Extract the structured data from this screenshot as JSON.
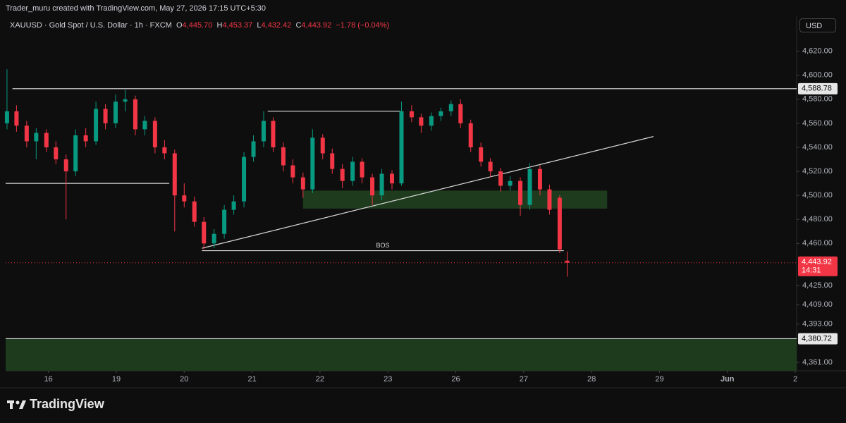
{
  "header": {
    "credit": "Trader_muru created with TradingView.com, May 27, 2026 17:15 UTC+5:30",
    "symbol": "XAUUSD · Gold Spot / U.S. Dollar · 1h · FXCM",
    "o_label": "O",
    "o_value": "4,445.70",
    "h_label": "H",
    "h_value": "4,453.37",
    "l_label": "L",
    "l_value": "4,432.42",
    "c_label": "C",
    "c_value": "4,443.92",
    "change": "−1.78 (−0.04%)",
    "currency": "USD"
  },
  "footer": {
    "logo": "TradingView"
  },
  "chart_data": {
    "type": "candlestick",
    "up_color": "#089981",
    "down_color": "#f23645",
    "x": [
      -0.61,
      -0.47,
      -0.32,
      -0.18,
      -0.03,
      0.11,
      0.26,
      0.4,
      0.55,
      0.7,
      0.84,
      0.99,
      1.13,
      1.28,
      1.42,
      1.57,
      1.71,
      1.86,
      2.0,
      2.15,
      2.29,
      2.44,
      2.59,
      2.73,
      2.88,
      3.02,
      3.17,
      3.31,
      3.46,
      3.6,
      3.75,
      3.89,
      4.04,
      4.18,
      4.33,
      4.48,
      4.62,
      4.77,
      4.91,
      5.06,
      5.2,
      5.35,
      5.49,
      5.64,
      5.78,
      5.93,
      6.07,
      6.22,
      6.37,
      6.51,
      6.66,
      6.8,
      6.95,
      7.09,
      7.24,
      7.38,
      7.53,
      7.64
    ],
    "open": [
      4560,
      4570,
      4558,
      4545,
      4552,
      4540,
      4530,
      4520,
      4550,
      4545,
      4572,
      4560,
      4578,
      4580,
      4555,
      4562,
      4540,
      4535,
      4500,
      4495,
      4478,
      4460,
      4468,
      4488,
      4495,
      4532,
      4545,
      4562,
      4540,
      4525,
      4515,
      4505,
      4548,
      4535,
      4522,
      4512,
      4528,
      4515,
      4500,
      4518,
      4510,
      4570,
      4565,
      4558,
      4566,
      4570,
      4576,
      4560,
      4540,
      4528,
      4520,
      4508,
      4512,
      4492,
      4522,
      4505,
      4498,
      4445.7
    ],
    "high": [
      4605,
      4575,
      4562,
      4556,
      4555,
      4545,
      4534,
      4555,
      4556,
      4578,
      4576,
      4584,
      4588,
      4583,
      4566,
      4565,
      4546,
      4538,
      4510,
      4499,
      4482,
      4472,
      4492,
      4500,
      4536,
      4550,
      4570,
      4565,
      4544,
      4530,
      4519,
      4555,
      4551,
      4539,
      4526,
      4532,
      4531,
      4518,
      4522,
      4521,
      4578,
      4575,
      4568,
      4569,
      4573,
      4579,
      4580,
      4563,
      4544,
      4531,
      4523,
      4516,
      4515,
      4527,
      4525,
      4509,
      4500,
      4453.37
    ],
    "low": [
      4555,
      4553,
      4540,
      4530,
      4536,
      4526,
      4480,
      4516,
      4540,
      4542,
      4555,
      4556,
      4570,
      4550,
      4550,
      4535,
      4530,
      4470,
      4490,
      4474,
      4455,
      4456,
      4464,
      4484,
      4490,
      4528,
      4540,
      4536,
      4520,
      4510,
      4498,
      4502,
      4530,
      4518,
      4506,
      4508,
      4510,
      4492,
      4496,
      4505,
      4508,
      4561,
      4552,
      4554,
      4562,
      4566,
      4556,
      4536,
      4524,
      4515,
      4503,
      4504,
      4483,
      4488,
      4500,
      4484,
      4452,
      4432.42
    ],
    "close": [
      4570,
      4558,
      4545,
      4552,
      4540,
      4530,
      4520,
      4550,
      4545,
      4572,
      4560,
      4578,
      4580,
      4555,
      4562,
      4540,
      4535,
      4500,
      4495,
      4478,
      4460,
      4468,
      4488,
      4495,
      4532,
      4545,
      4562,
      4540,
      4525,
      4515,
      4505,
      4548,
      4535,
      4522,
      4512,
      4528,
      4515,
      4500,
      4518,
      4510,
      4570,
      4565,
      4558,
      4566,
      4570,
      4576,
      4560,
      4540,
      4528,
      4520,
      4508,
      4512,
      4492,
      4522,
      4505,
      4488,
      4455,
      4443.92
    ],
    "xlim": [
      -0.63,
      11.02
    ],
    "ylim": [
      4354,
      4645
    ],
    "xticks": [
      {
        "value": 0,
        "label": "16"
      },
      {
        "value": 1,
        "label": "19"
      },
      {
        "value": 2,
        "label": "20"
      },
      {
        "value": 3,
        "label": "21"
      },
      {
        "value": 4,
        "label": "22"
      },
      {
        "value": 5,
        "label": "23"
      },
      {
        "value": 6,
        "label": "26"
      },
      {
        "value": 7,
        "label": "27"
      },
      {
        "value": 8,
        "label": "28"
      },
      {
        "value": 9,
        "label": "29"
      },
      {
        "value": 10,
        "label": "Jun"
      },
      {
        "value": 11,
        "label": "2"
      }
    ],
    "yticks": [
      {
        "value": 4361,
        "label": "4,361.00"
      },
      {
        "value": 4393,
        "label": "4,393.00"
      },
      {
        "value": 4409,
        "label": "4,409.00"
      },
      {
        "value": 4425,
        "label": "4,425.00"
      },
      {
        "value": 4460,
        "label": "4,460.00"
      },
      {
        "value": 4480,
        "label": "4,480.00"
      },
      {
        "value": 4500,
        "label": "4,500.00"
      },
      {
        "value": 4520,
        "label": "4,520.00"
      },
      {
        "value": 4540,
        "label": "4,540.00"
      },
      {
        "value": 4560,
        "label": "4,560.00"
      },
      {
        "value": 4580,
        "label": "4,580.00"
      },
      {
        "value": 4600,
        "label": "4,600.00"
      },
      {
        "value": 4620,
        "label": "4,620.00"
      }
    ],
    "levels": [
      {
        "value": 4588.78,
        "label": "4,588.78",
        "x_start": -0.53
      },
      {
        "value": 4380.72,
        "label": "4,380.72",
        "x_start": -0.63
      }
    ],
    "zones": [
      {
        "x": [
          3.75,
          8.23
        ],
        "y": [
          4489,
          4504
        ],
        "color": "#1e3b1e"
      },
      {
        "x": [
          -0.63,
          11.02
        ],
        "y": [
          4354,
          4380.72
        ],
        "color": "#1e3b1e"
      }
    ],
    "segments": [
      {
        "x": [
          -0.63,
          1.78
        ],
        "y": [
          4510,
          4510
        ]
      },
      {
        "x": [
          3.23,
          5.18
        ],
        "y": [
          4570,
          4570
        ]
      },
      {
        "x": [
          2.26,
          7.59
        ],
        "y": [
          4454,
          4454
        ],
        "label": "BOS"
      },
      {
        "x": [
          2.26,
          8.91
        ],
        "y": [
          4456,
          4549
        ]
      }
    ],
    "last_price": {
      "value": 4443.92,
      "label": "4,443.92",
      "countdown": "14:31"
    }
  }
}
